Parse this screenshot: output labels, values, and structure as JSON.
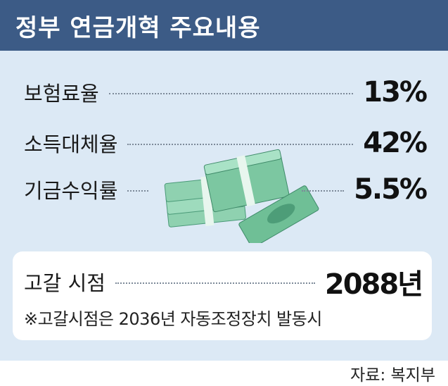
{
  "header": {
    "title": "정부 연금개혁 주요내용"
  },
  "items": [
    {
      "label": "보험료율",
      "value": "13%"
    },
    {
      "label": "소득대체율",
      "value": "42%"
    },
    {
      "label": "기금수익률",
      "value": "5.5%"
    }
  ],
  "depletion": {
    "label": "고갈 시점",
    "value": "2088년",
    "note": "※고갈시점은 2036년 자동조정장치 발동시"
  },
  "source": "자료: 복지부"
}
